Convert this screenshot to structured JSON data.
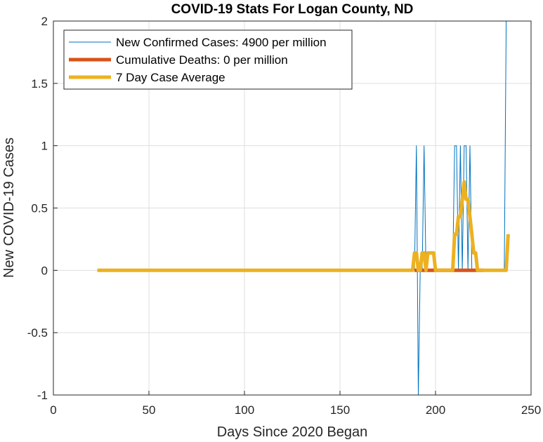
{
  "chart_data": {
    "type": "line",
    "title": "COVID-19 Stats For Logan County, ND",
    "xlabel": "Days Since 2020 Began",
    "ylabel": "New COVID-19 Cases",
    "xlim": [
      0,
      250
    ],
    "ylim": [
      -1,
      2
    ],
    "xticks": [
      "0",
      "50",
      "100",
      "150",
      "200",
      "250"
    ],
    "yticks": [
      "-1",
      "-0.5",
      "0",
      "0.5",
      "1",
      "1.5",
      "2"
    ],
    "grid": true,
    "legend_position": "top-left",
    "series": [
      {
        "name": "New Confirmed Cases: 4900 per million",
        "color": "#0072BD",
        "points": [
          [
            23,
            0
          ],
          [
            189,
            0
          ],
          [
            190,
            1
          ],
          [
            191,
            -1
          ],
          [
            192,
            0
          ],
          [
            193,
            0
          ],
          [
            194,
            1
          ],
          [
            195,
            0
          ],
          [
            209,
            0
          ],
          [
            210,
            1
          ],
          [
            211,
            1
          ],
          [
            212,
            0
          ],
          [
            213,
            1
          ],
          [
            214,
            0
          ],
          [
            215,
            1
          ],
          [
            216,
            1
          ],
          [
            217,
            0
          ],
          [
            218,
            1
          ],
          [
            219,
            0
          ],
          [
            236,
            0
          ],
          [
            237,
            2
          ],
          [
            238,
            2
          ]
        ]
      },
      {
        "name": "Cumulative Deaths: 0 per million",
        "color": "#D95319",
        "points": [
          [
            189,
            0
          ],
          [
            200,
            0
          ],
          [
            209,
            0
          ],
          [
            225,
            0
          ]
        ]
      },
      {
        "name": "7 Day Case Average",
        "color": "#EDB120",
        "points": [
          [
            23,
            0
          ],
          [
            188,
            0
          ],
          [
            189,
            0.14
          ],
          [
            190,
            0.14
          ],
          [
            191,
            0
          ],
          [
            192,
            0
          ],
          [
            193,
            0.14
          ],
          [
            194,
            0.14
          ],
          [
            195,
            0
          ],
          [
            196,
            0.14
          ],
          [
            197,
            0.14
          ],
          [
            198,
            0.14
          ],
          [
            199,
            0.14
          ],
          [
            200,
            0
          ],
          [
            208,
            0
          ],
          [
            209,
            0
          ],
          [
            210,
            0.29
          ],
          [
            211,
            0.29
          ],
          [
            212,
            0.43
          ],
          [
            213,
            0.43
          ],
          [
            214,
            0.57
          ],
          [
            215,
            0.71
          ],
          [
            216,
            0.57
          ],
          [
            217,
            0.57
          ],
          [
            218,
            0.43
          ],
          [
            219,
            0.29
          ],
          [
            220,
            0.14
          ],
          [
            221,
            0.14
          ],
          [
            222,
            0
          ],
          [
            236,
            0
          ],
          [
            237,
            0
          ],
          [
            238,
            0.29
          ]
        ]
      }
    ]
  }
}
